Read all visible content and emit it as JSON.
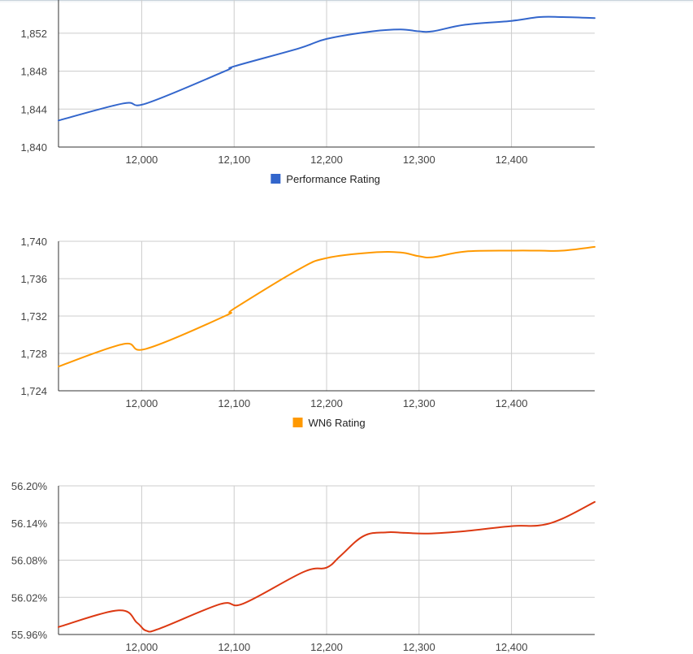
{
  "charts": [
    {
      "chart_data": {
        "type": "line",
        "series": [
          {
            "name": "Performance Rating",
            "color": "#3366cc",
            "x": [
              11910,
              11980,
              12005,
              12090,
              12100,
              12170,
              12200,
              12250,
              12280,
              12300,
              12315,
              12350,
              12400,
              12430,
              12455,
              12490
            ],
            "values": [
              1842.8,
              1844.6,
              1844.6,
              1848.0,
              1848.5,
              1850.4,
              1851.4,
              1852.2,
              1852.4,
              1852.2,
              1852.2,
              1852.9,
              1853.3,
              1853.7,
              1853.7,
              1853.6
            ]
          }
        ],
        "xticks": [
          12000,
          12100,
          12200,
          12300,
          12400
        ],
        "xtick_labels": [
          "12,000",
          "12,100",
          "12,200",
          "12,300",
          "12,400"
        ],
        "yticks": [
          1840,
          1844,
          1848,
          1852
        ],
        "ytick_labels": [
          "1,840",
          "1,844",
          "1,848",
          "1,852"
        ],
        "xlim": [
          11910,
          12490
        ],
        "ylim": [
          1840,
          1855.5
        ],
        "grid": true,
        "legend": "bottom"
      }
    },
    {
      "chart_data": {
        "type": "line",
        "series": [
          {
            "name": "WN6 Rating",
            "color": "#ff9900",
            "x": [
              11910,
              11980,
              12005,
              12090,
              12100,
              12170,
              12200,
              12250,
              12280,
              12300,
              12315,
              12350,
              12400,
              12430,
              12455,
              12490
            ],
            "values": [
              1726.6,
              1729.0,
              1728.5,
              1732.0,
              1732.8,
              1737.0,
              1738.2,
              1738.8,
              1738.8,
              1738.4,
              1738.3,
              1738.9,
              1739.0,
              1739.0,
              1739.0,
              1739.4
            ]
          }
        ],
        "xticks": [
          12000,
          12100,
          12200,
          12300,
          12400
        ],
        "xtick_labels": [
          "12,000",
          "12,100",
          "12,200",
          "12,300",
          "12,400"
        ],
        "yticks": [
          1724,
          1728,
          1732,
          1736,
          1740
        ],
        "ytick_labels": [
          "1,724",
          "1,728",
          "1,732",
          "1,736",
          "1,740"
        ],
        "xlim": [
          11910,
          12490
        ],
        "ylim": [
          1724,
          1740
        ],
        "grid": true,
        "legend": "bottom"
      }
    },
    {
      "chart_data": {
        "type": "line",
        "series": [
          {
            "color": "#dc3912",
            "x": [
              11910,
              11975,
              11995,
              12005,
              12020,
              12085,
              12110,
              12175,
              12200,
              12215,
              12240,
              12265,
              12285,
              12310,
              12350,
              12400,
              12430,
              12455,
              12490
            ],
            "values": [
              55.972,
              55.999,
              55.979,
              55.966,
              55.97,
              56.009,
              56.01,
              56.061,
              56.068,
              56.087,
              56.119,
              56.125,
              56.124,
              56.123,
              56.127,
              56.135,
              56.136,
              56.147,
              56.174
            ]
          }
        ],
        "xticks": [
          12000,
          12100,
          12200,
          12300,
          12400
        ],
        "xtick_labels": [
          "12,000",
          "12,100",
          "12,200",
          "12,300",
          "12,400"
        ],
        "yticks": [
          55.96,
          56.02,
          56.08,
          56.14,
          56.2
        ],
        "ytick_labels": [
          "55.96%",
          "56.02%",
          "56.08%",
          "56.14%",
          "56.20%"
        ],
        "xlim": [
          11910,
          12490
        ],
        "ylim": [
          55.96,
          56.2
        ],
        "grid": true,
        "legend": "none"
      }
    }
  ]
}
